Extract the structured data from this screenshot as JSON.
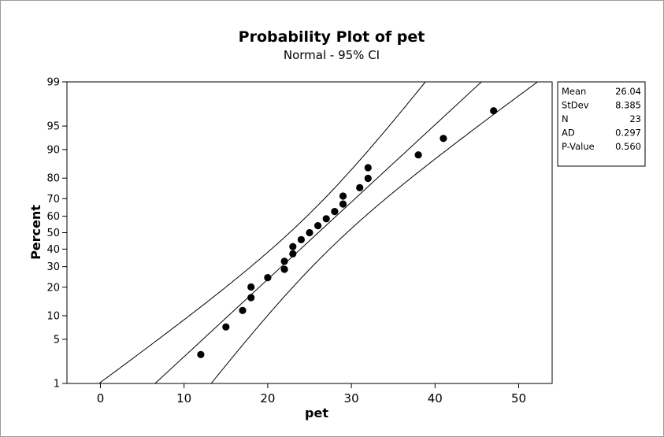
{
  "chart_data": {
    "type": "scatter",
    "title": "Probability Plot of pet",
    "subtitle": "Normal - 95% CI",
    "xlabel": "pet",
    "ylabel": "Percent",
    "xlim": [
      -4,
      54
    ],
    "ylim": [
      1,
      99
    ],
    "y_scale": "normal-probability",
    "x_ticks": [
      0,
      10,
      20,
      30,
      40,
      50
    ],
    "y_ticks": [
      1,
      5,
      10,
      20,
      30,
      40,
      50,
      60,
      70,
      80,
      90,
      95,
      99
    ],
    "mean": 26.04,
    "stdev": 8.385,
    "points": [
      {
        "x": 12,
        "y": 3.0
      },
      {
        "x": 15,
        "y": 7.3
      },
      {
        "x": 17,
        "y": 11.5
      },
      {
        "x": 18,
        "y": 15.8
      },
      {
        "x": 18,
        "y": 20.1
      },
      {
        "x": 20,
        "y": 24.4
      },
      {
        "x": 22,
        "y": 28.6
      },
      {
        "x": 22,
        "y": 32.9
      },
      {
        "x": 23,
        "y": 37.2
      },
      {
        "x": 23,
        "y": 41.5
      },
      {
        "x": 24,
        "y": 45.7
      },
      {
        "x": 25,
        "y": 50.0
      },
      {
        "x": 26,
        "y": 54.3
      },
      {
        "x": 27,
        "y": 58.5
      },
      {
        "x": 28,
        "y": 62.8
      },
      {
        "x": 29,
        "y": 67.1
      },
      {
        "x": 29,
        "y": 71.4
      },
      {
        "x": 31,
        "y": 75.6
      },
      {
        "x": 32,
        "y": 79.9
      },
      {
        "x": 32,
        "y": 84.2
      },
      {
        "x": 38,
        "y": 88.5
      },
      {
        "x": 41,
        "y": 92.7
      },
      {
        "x": 47,
        "y": 97.0
      }
    ],
    "stats": [
      {
        "label": "Mean",
        "value": "26.04"
      },
      {
        "label": "StDev",
        "value": "8.385"
      },
      {
        "label": "N",
        "value": "23"
      },
      {
        "label": "AD",
        "value": "0.297"
      },
      {
        "label": "P-Value",
        "value": "0.560"
      }
    ]
  }
}
